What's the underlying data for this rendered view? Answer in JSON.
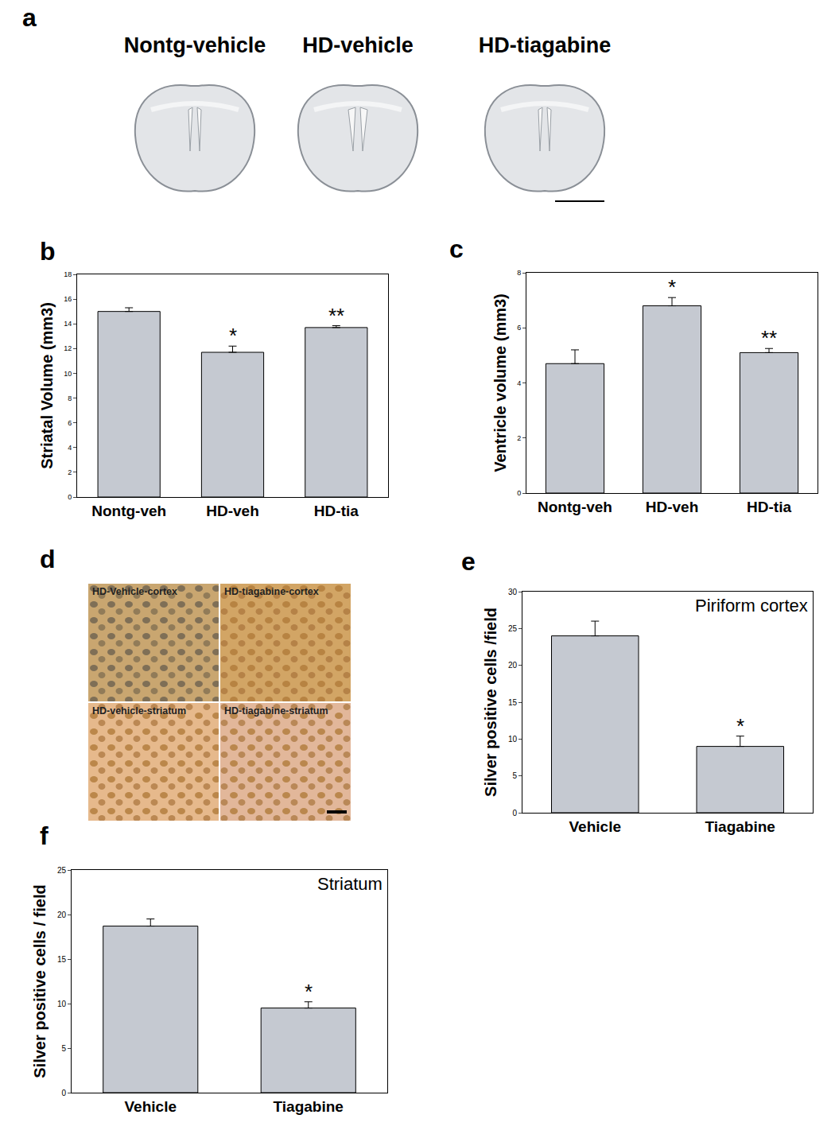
{
  "figure_panels": [
    {
      "panel": "a",
      "labels": [
        "Nontg-vehicle",
        "HD-vehicle",
        "HD-tiagabine"
      ]
    },
    {
      "panel": "d",
      "labels": [
        "HD-Vehicle-cortex",
        "HD-tiagabine-cortex",
        "HD-vehicle-striatum",
        "HD-tiagabine-striatum"
      ]
    }
  ],
  "chart_data": [
    {
      "panel": "b",
      "type": "bar",
      "categories": [
        "Nontg-veh",
        "HD-veh",
        "HD-tia"
      ],
      "values": [
        15.0,
        11.7,
        13.7
      ],
      "errors": [
        0.3,
        0.5,
        0.15
      ],
      "y_label": "Striatal Volume (mm3)",
      "ylim": [
        0,
        18
      ],
      "yticks": [
        0,
        2,
        4,
        6,
        8,
        10,
        12,
        14,
        16,
        18
      ],
      "color": "#c5c9d1",
      "annotations": [
        {
          "category": "HD-veh",
          "text": "*"
        },
        {
          "category": "HD-tia",
          "text": "**"
        }
      ]
    },
    {
      "panel": "c",
      "type": "bar",
      "categories": [
        "Nontg-veh",
        "HD-veh",
        "HD-tia"
      ],
      "values": [
        4.7,
        6.8,
        5.1
      ],
      "errors": [
        0.5,
        0.3,
        0.15
      ],
      "y_label": "Ventricle volume (mm3)",
      "ylim": [
        0,
        8
      ],
      "yticks": [
        0,
        2,
        4,
        6,
        8
      ],
      "color": "#c5c9d1",
      "annotations": [
        {
          "category": "HD-veh",
          "text": "*"
        },
        {
          "category": "HD-tia",
          "text": "**"
        }
      ]
    },
    {
      "panel": "e",
      "type": "bar",
      "title": "Piriform cortex",
      "categories": [
        "Vehicle",
        "Tiagabine"
      ],
      "values": [
        24,
        9
      ],
      "errors": [
        2,
        1.4
      ],
      "y_label": "Silver positive cells /field",
      "ylim": [
        0,
        30
      ],
      "yticks": [
        0,
        5,
        10,
        15,
        20,
        25,
        30
      ],
      "color": "#c5c9d1",
      "annotations": [
        {
          "category": "Tiagabine",
          "text": "*"
        }
      ]
    },
    {
      "panel": "f",
      "type": "bar",
      "title": "Striatum",
      "categories": [
        "Vehicle",
        "Tiagabine"
      ],
      "values": [
        18.7,
        9.5
      ],
      "errors": [
        0.8,
        0.7
      ],
      "y_label": "Silver positive cells / field",
      "ylim": [
        0,
        25
      ],
      "yticks": [
        0,
        5,
        10,
        15,
        20,
        25
      ],
      "color": "#c5c9d1",
      "annotations": [
        {
          "category": "Tiagabine",
          "text": "*"
        }
      ]
    }
  ]
}
